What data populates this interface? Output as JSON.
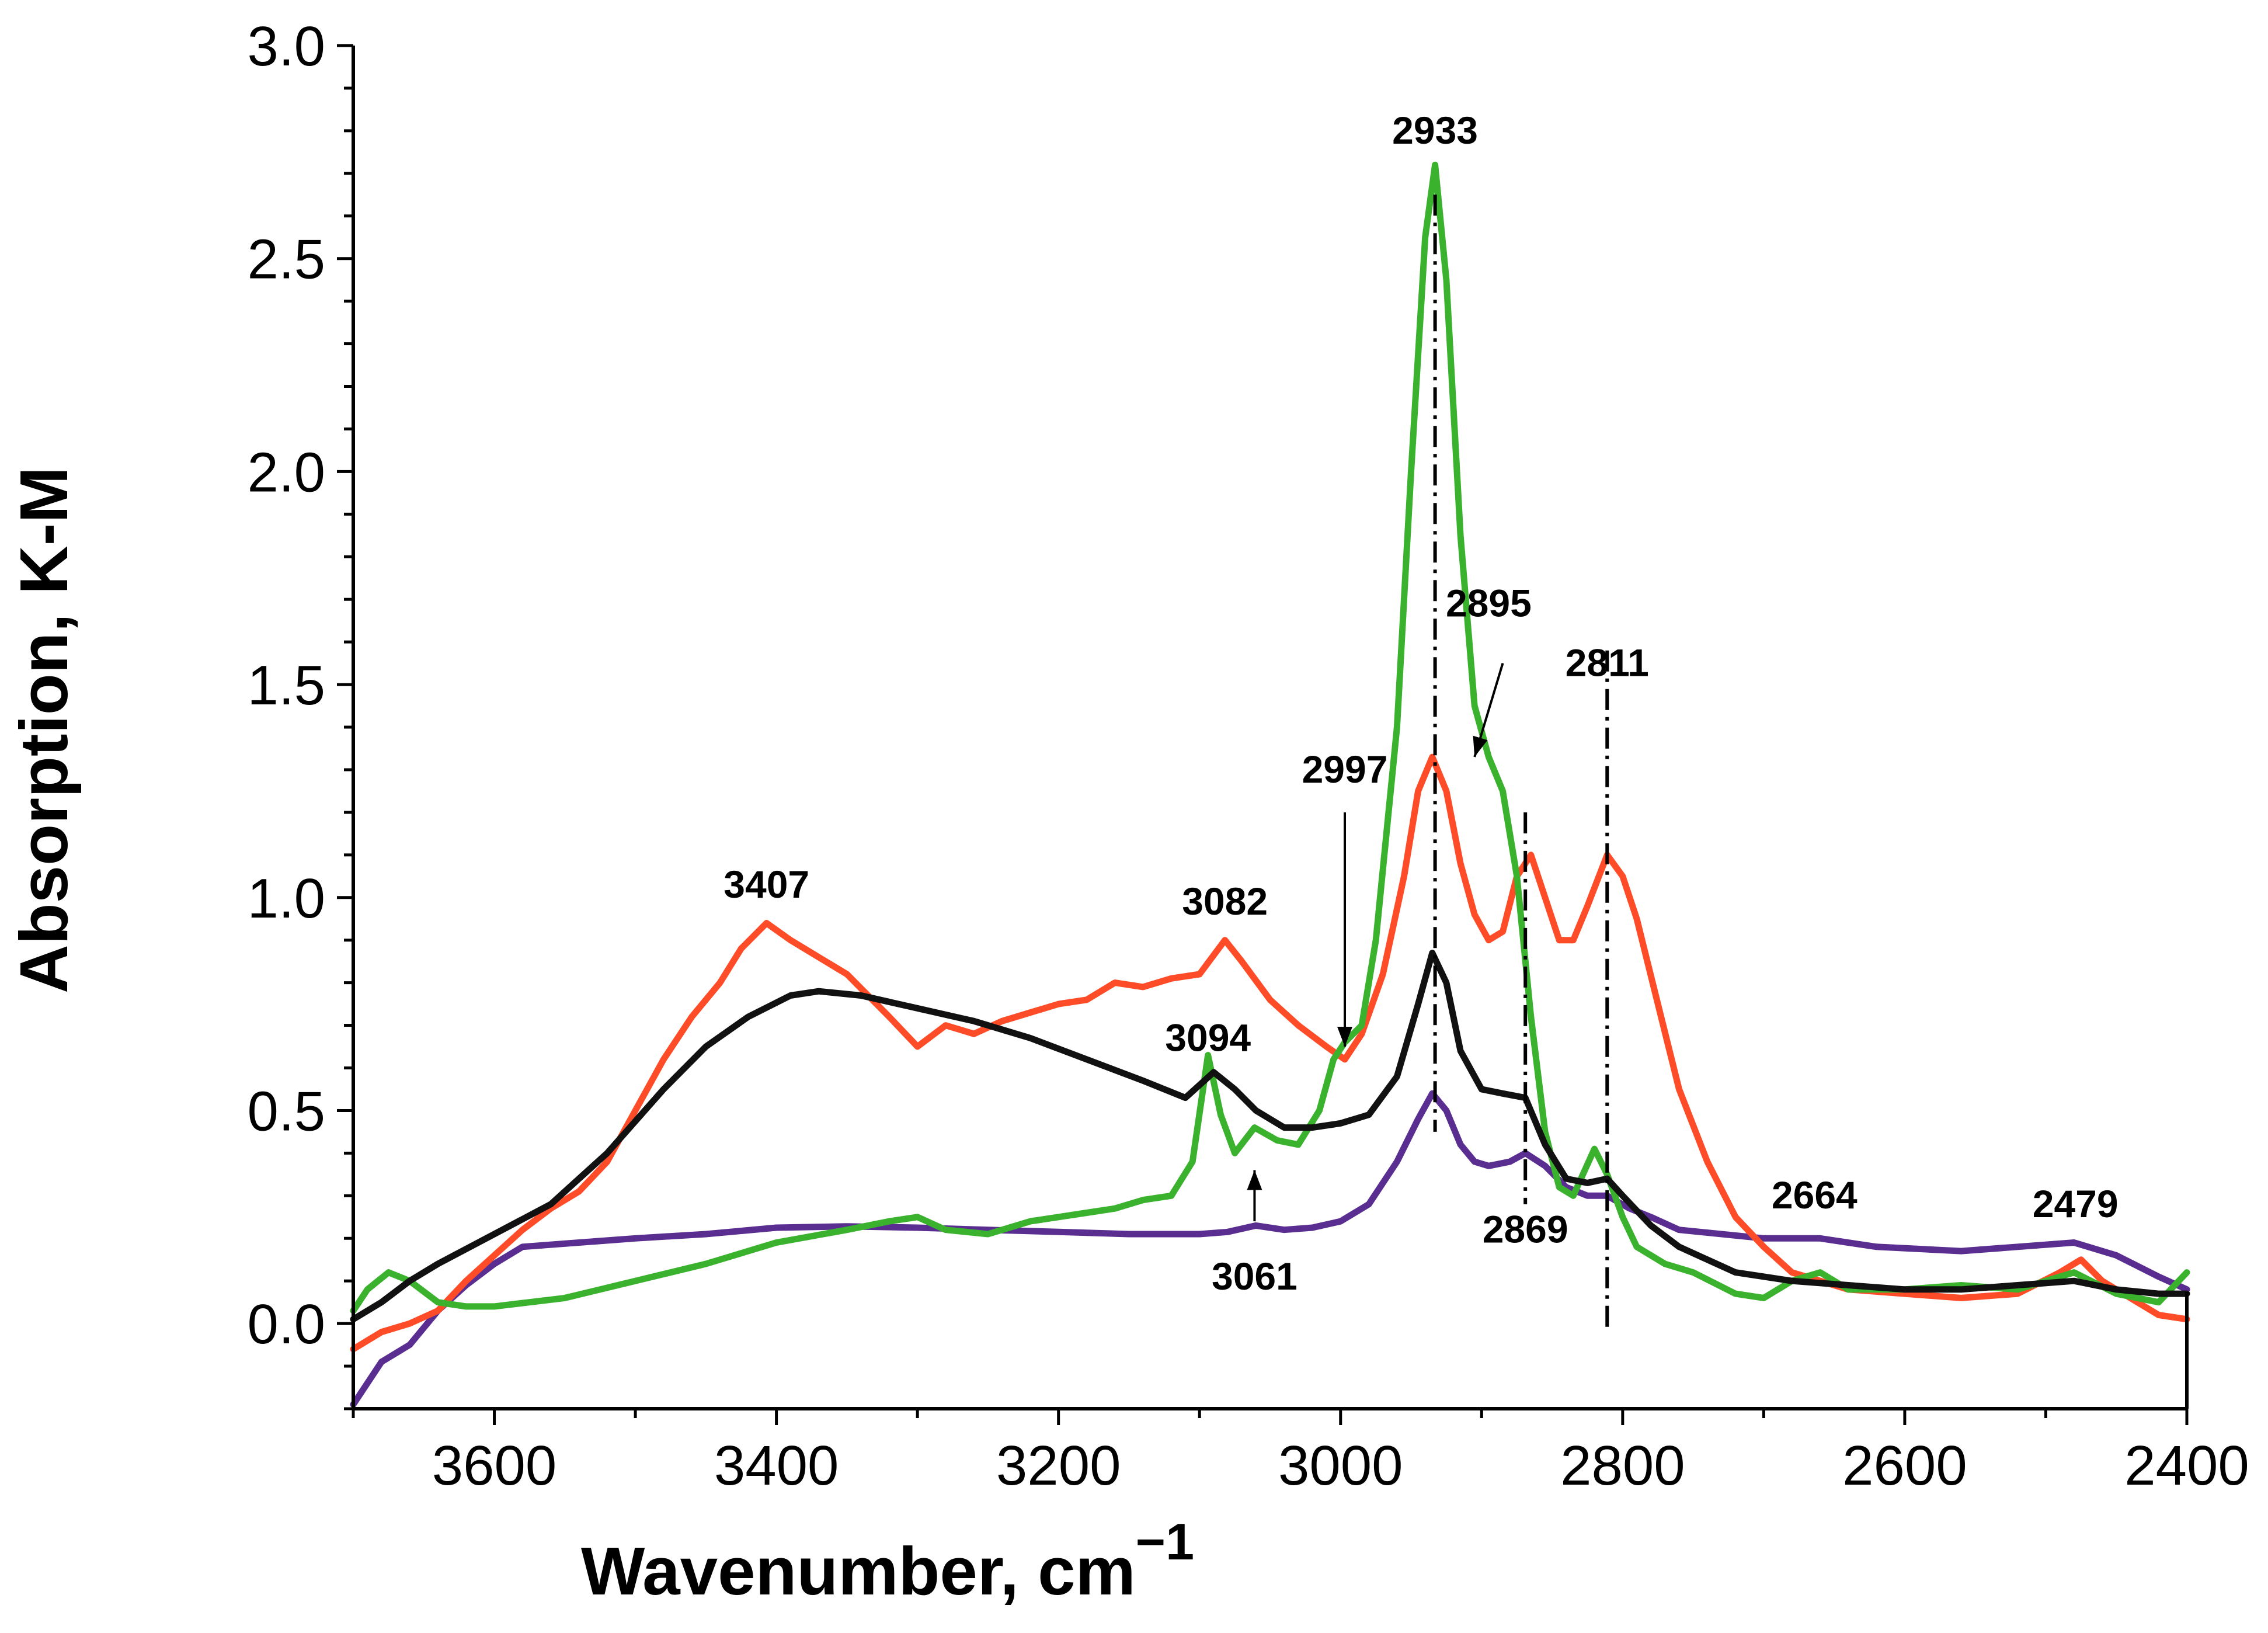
{
  "chart_data": {
    "type": "line",
    "title": "",
    "xlabel": "Wavenumber, cm",
    "xlabel_superscript": "−1",
    "ylabel": "Absorption, K-M",
    "xlim": [
      3700,
      2400
    ],
    "ylim": [
      -0.2,
      3.0
    ],
    "x_reversed": true,
    "xticks": [
      3600,
      3400,
      3200,
      3000,
      2800,
      2600,
      2400
    ],
    "xtick_labels": [
      "3600",
      "3400",
      "3200",
      "3000",
      "2800",
      "2600",
      "2400"
    ],
    "yticks": [
      0.0,
      0.5,
      1.0,
      1.5,
      2.0,
      2.5,
      3.0
    ],
    "ytick_labels": [
      "0.0",
      "0.5",
      "1.0",
      "1.5",
      "2.0",
      "2.5",
      "3.0"
    ],
    "series": [
      {
        "name": "purple",
        "color": "#5a2d91",
        "points": [
          [
            3700,
            -0.19
          ],
          [
            3680,
            -0.09
          ],
          [
            3660,
            -0.05
          ],
          [
            3640,
            0.03
          ],
          [
            3620,
            0.09
          ],
          [
            3600,
            0.14
          ],
          [
            3580,
            0.18
          ],
          [
            3540,
            0.19
          ],
          [
            3500,
            0.2
          ],
          [
            3450,
            0.21
          ],
          [
            3400,
            0.225
          ],
          [
            3350,
            0.228
          ],
          [
            3300,
            0.225
          ],
          [
            3250,
            0.22
          ],
          [
            3200,
            0.215
          ],
          [
            3150,
            0.21
          ],
          [
            3100,
            0.21
          ],
          [
            3080,
            0.215
          ],
          [
            3060,
            0.23
          ],
          [
            3040,
            0.22
          ],
          [
            3020,
            0.225
          ],
          [
            3000,
            0.24
          ],
          [
            2980,
            0.28
          ],
          [
            2960,
            0.38
          ],
          [
            2945,
            0.48
          ],
          [
            2935,
            0.54
          ],
          [
            2925,
            0.5
          ],
          [
            2915,
            0.42
          ],
          [
            2905,
            0.38
          ],
          [
            2895,
            0.37
          ],
          [
            2880,
            0.38
          ],
          [
            2869,
            0.4
          ],
          [
            2855,
            0.37
          ],
          [
            2840,
            0.32
          ],
          [
            2825,
            0.3
          ],
          [
            2811,
            0.3
          ],
          [
            2795,
            0.27
          ],
          [
            2780,
            0.25
          ],
          [
            2760,
            0.22
          ],
          [
            2700,
            0.2
          ],
          [
            2660,
            0.2
          ],
          [
            2620,
            0.18
          ],
          [
            2560,
            0.17
          ],
          [
            2520,
            0.18
          ],
          [
            2480,
            0.19
          ],
          [
            2450,
            0.16
          ],
          [
            2420,
            0.11
          ],
          [
            2400,
            0.08
          ]
        ]
      },
      {
        "name": "red",
        "color": "#ff4c28",
        "points": [
          [
            3700,
            -0.06
          ],
          [
            3680,
            -0.02
          ],
          [
            3660,
            0.0
          ],
          [
            3640,
            0.03
          ],
          [
            3620,
            0.1
          ],
          [
            3600,
            0.16
          ],
          [
            3580,
            0.22
          ],
          [
            3560,
            0.27
          ],
          [
            3540,
            0.31
          ],
          [
            3520,
            0.38
          ],
          [
            3500,
            0.5
          ],
          [
            3480,
            0.62
          ],
          [
            3460,
            0.72
          ],
          [
            3440,
            0.8
          ],
          [
            3425,
            0.88
          ],
          [
            3407,
            0.94
          ],
          [
            3390,
            0.9
          ],
          [
            3370,
            0.86
          ],
          [
            3350,
            0.82
          ],
          [
            3320,
            0.72
          ],
          [
            3300,
            0.65
          ],
          [
            3280,
            0.7
          ],
          [
            3260,
            0.68
          ],
          [
            3240,
            0.71
          ],
          [
            3220,
            0.73
          ],
          [
            3200,
            0.75
          ],
          [
            3180,
            0.76
          ],
          [
            3160,
            0.8
          ],
          [
            3140,
            0.79
          ],
          [
            3120,
            0.81
          ],
          [
            3100,
            0.82
          ],
          [
            3082,
            0.9
          ],
          [
            3070,
            0.85
          ],
          [
            3050,
            0.76
          ],
          [
            3030,
            0.7
          ],
          [
            3010,
            0.65
          ],
          [
            2997,
            0.62
          ],
          [
            2985,
            0.68
          ],
          [
            2970,
            0.82
          ],
          [
            2955,
            1.05
          ],
          [
            2945,
            1.25
          ],
          [
            2935,
            1.33
          ],
          [
            2925,
            1.25
          ],
          [
            2915,
            1.08
          ],
          [
            2905,
            0.96
          ],
          [
            2895,
            0.9
          ],
          [
            2885,
            0.92
          ],
          [
            2875,
            1.05
          ],
          [
            2865,
            1.1
          ],
          [
            2855,
            1.0
          ],
          [
            2845,
            0.9
          ],
          [
            2835,
            0.9
          ],
          [
            2825,
            0.98
          ],
          [
            2811,
            1.1
          ],
          [
            2800,
            1.05
          ],
          [
            2790,
            0.95
          ],
          [
            2775,
            0.75
          ],
          [
            2760,
            0.55
          ],
          [
            2740,
            0.38
          ],
          [
            2720,
            0.25
          ],
          [
            2700,
            0.18
          ],
          [
            2680,
            0.12
          ],
          [
            2660,
            0.1
          ],
          [
            2640,
            0.08
          ],
          [
            2600,
            0.07
          ],
          [
            2560,
            0.06
          ],
          [
            2520,
            0.07
          ],
          [
            2490,
            0.12
          ],
          [
            2475,
            0.15
          ],
          [
            2460,
            0.1
          ],
          [
            2440,
            0.06
          ],
          [
            2420,
            0.02
          ],
          [
            2400,
            0.01
          ]
        ]
      },
      {
        "name": "green",
        "color": "#3ab22e",
        "points": [
          [
            3700,
            0.03
          ],
          [
            3690,
            0.08
          ],
          [
            3675,
            0.12
          ],
          [
            3660,
            0.1
          ],
          [
            3640,
            0.05
          ],
          [
            3620,
            0.04
          ],
          [
            3600,
            0.04
          ],
          [
            3550,
            0.06
          ],
          [
            3500,
            0.1
          ],
          [
            3450,
            0.14
          ],
          [
            3400,
            0.19
          ],
          [
            3350,
            0.22
          ],
          [
            3320,
            0.24
          ],
          [
            3300,
            0.25
          ],
          [
            3280,
            0.22
          ],
          [
            3250,
            0.21
          ],
          [
            3220,
            0.24
          ],
          [
            3200,
            0.25
          ],
          [
            3180,
            0.26
          ],
          [
            3160,
            0.27
          ],
          [
            3140,
            0.29
          ],
          [
            3120,
            0.3
          ],
          [
            3105,
            0.38
          ],
          [
            3094,
            0.63
          ],
          [
            3085,
            0.49
          ],
          [
            3075,
            0.4
          ],
          [
            3061,
            0.46
          ],
          [
            3045,
            0.43
          ],
          [
            3030,
            0.42
          ],
          [
            3015,
            0.5
          ],
          [
            3005,
            0.62
          ],
          [
            2997,
            0.66
          ],
          [
            2985,
            0.7
          ],
          [
            2975,
            0.9
          ],
          [
            2960,
            1.4
          ],
          [
            2950,
            2.0
          ],
          [
            2940,
            2.55
          ],
          [
            2933,
            2.72
          ],
          [
            2925,
            2.45
          ],
          [
            2915,
            1.85
          ],
          [
            2905,
            1.45
          ],
          [
            2895,
            1.33
          ],
          [
            2885,
            1.25
          ],
          [
            2875,
            1.05
          ],
          [
            2865,
            0.72
          ],
          [
            2855,
            0.45
          ],
          [
            2845,
            0.32
          ],
          [
            2835,
            0.3
          ],
          [
            2820,
            0.41
          ],
          [
            2811,
            0.35
          ],
          [
            2800,
            0.25
          ],
          [
            2790,
            0.18
          ],
          [
            2770,
            0.14
          ],
          [
            2750,
            0.12
          ],
          [
            2720,
            0.07
          ],
          [
            2700,
            0.06
          ],
          [
            2680,
            0.1
          ],
          [
            2660,
            0.12
          ],
          [
            2640,
            0.08
          ],
          [
            2600,
            0.08
          ],
          [
            2560,
            0.09
          ],
          [
            2520,
            0.08
          ],
          [
            2480,
            0.12
          ],
          [
            2450,
            0.07
          ],
          [
            2420,
            0.05
          ],
          [
            2400,
            0.12
          ]
        ]
      },
      {
        "name": "black",
        "color": "#111111",
        "points": [
          [
            3700,
            0.01
          ],
          [
            3680,
            0.05
          ],
          [
            3660,
            0.1
          ],
          [
            3640,
            0.14
          ],
          [
            3600,
            0.21
          ],
          [
            3560,
            0.28
          ],
          [
            3520,
            0.4
          ],
          [
            3480,
            0.55
          ],
          [
            3450,
            0.65
          ],
          [
            3420,
            0.72
          ],
          [
            3390,
            0.77
          ],
          [
            3370,
            0.78
          ],
          [
            3340,
            0.77
          ],
          [
            3300,
            0.74
          ],
          [
            3260,
            0.71
          ],
          [
            3220,
            0.67
          ],
          [
            3180,
            0.62
          ],
          [
            3140,
            0.57
          ],
          [
            3110,
            0.53
          ],
          [
            3090,
            0.59
          ],
          [
            3075,
            0.55
          ],
          [
            3060,
            0.5
          ],
          [
            3040,
            0.46
          ],
          [
            3020,
            0.46
          ],
          [
            3000,
            0.47
          ],
          [
            2980,
            0.49
          ],
          [
            2960,
            0.58
          ],
          [
            2945,
            0.75
          ],
          [
            2935,
            0.87
          ],
          [
            2925,
            0.8
          ],
          [
            2915,
            0.64
          ],
          [
            2900,
            0.55
          ],
          [
            2885,
            0.54
          ],
          [
            2869,
            0.53
          ],
          [
            2855,
            0.42
          ],
          [
            2840,
            0.34
          ],
          [
            2825,
            0.33
          ],
          [
            2811,
            0.34
          ],
          [
            2800,
            0.3
          ],
          [
            2780,
            0.23
          ],
          [
            2760,
            0.18
          ],
          [
            2720,
            0.12
          ],
          [
            2680,
            0.1
          ],
          [
            2640,
            0.09
          ],
          [
            2600,
            0.08
          ],
          [
            2560,
            0.08
          ],
          [
            2520,
            0.09
          ],
          [
            2480,
            0.1
          ],
          [
            2450,
            0.08
          ],
          [
            2420,
            0.07
          ],
          [
            2400,
            0.07
          ]
        ]
      }
    ],
    "annotations": [
      {
        "label": "3407",
        "x": 3407,
        "y": 1.0
      },
      {
        "label": "3082",
        "x": 3082,
        "y": 0.96
      },
      {
        "label": "3094",
        "x": 3094,
        "y": 0.64
      },
      {
        "label": "3061",
        "x": 3061,
        "y": 0.08
      },
      {
        "label": "2997",
        "x": 2997,
        "y": 1.27
      },
      {
        "label": "2933",
        "x": 2933,
        "y": 2.77
      },
      {
        "label": "2895",
        "x": 2895,
        "y": 1.66
      },
      {
        "label": "2869",
        "x": 2869,
        "y": 0.19
      },
      {
        "label": "2811",
        "x": 2811,
        "y": 1.52
      },
      {
        "label": "2664",
        "x": 2664,
        "y": 0.27
      },
      {
        "label": "2479",
        "x": 2479,
        "y": 0.25
      }
    ],
    "marker_lines": [
      {
        "x": 2933,
        "y_top": 2.65,
        "y_bottom": 0.45
      },
      {
        "x": 2869,
        "y_top": 1.2,
        "y_bottom": 0.28
      },
      {
        "x": 2811,
        "y_top": 1.58,
        "y_bottom": -0.02
      }
    ],
    "arrows": [
      {
        "from": [
          2997,
          1.2
        ],
        "to": [
          2997,
          0.65
        ]
      },
      {
        "from": [
          2885,
          1.55
        ],
        "to": [
          2905,
          1.33
        ]
      },
      {
        "from": [
          3061,
          0.24
        ],
        "to": [
          3061,
          0.36
        ]
      }
    ]
  }
}
